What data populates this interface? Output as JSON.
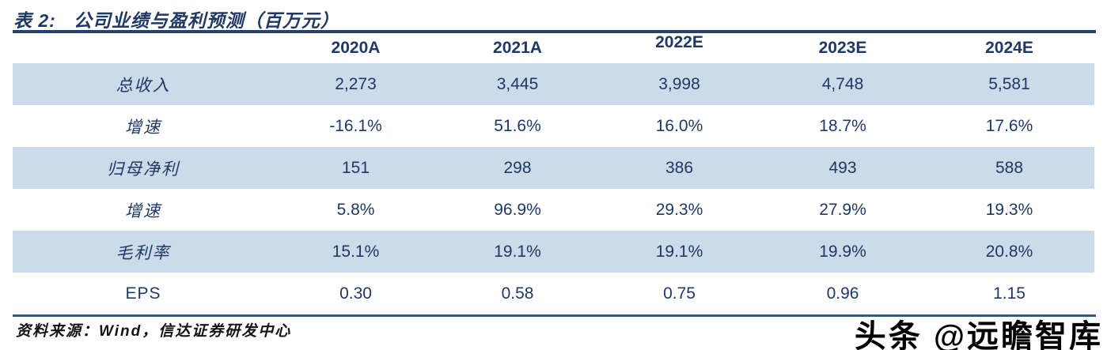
{
  "title": {
    "prefix": "表 2:",
    "text": "公司业绩与盈利预测（百万元）"
  },
  "table": {
    "columns": [
      "2020A",
      "2021A",
      "2022E",
      "2023E",
      "2024E"
    ],
    "rows": [
      {
        "label": "总收入",
        "values": [
          "2,273",
          "3,445",
          "3,998",
          "4,748",
          "5,581"
        ]
      },
      {
        "label": "增速",
        "values": [
          "-16.1%",
          "51.6%",
          "16.0%",
          "18.7%",
          "17.6%"
        ]
      },
      {
        "label": "归母净利",
        "values": [
          "151",
          "298",
          "386",
          "493",
          "588"
        ]
      },
      {
        "label": "增速",
        "values": [
          "5.8%",
          "96.9%",
          "29.3%",
          "27.9%",
          "19.3%"
        ]
      },
      {
        "label": "毛利率",
        "values": [
          "15.1%",
          "19.1%",
          "19.1%",
          "19.9%",
          "20.8%"
        ]
      },
      {
        "label": "EPS",
        "values": [
          "0.30",
          "0.58",
          "0.75",
          "0.96",
          "1.15"
        ]
      }
    ]
  },
  "footer": {
    "source": "资料来源：Wind，信达证券研发中心"
  },
  "watermark": "头条 @远瞻智库",
  "colors": {
    "navy": "#1f3864",
    "row_shade": "#ccdbea",
    "top_rule": "#24426e",
    "bottom_rule": "#37597c"
  },
  "chart_data": {
    "type": "table",
    "title": "表 2: 公司业绩与盈利预测（百万元）",
    "categories": [
      "2020A",
      "2021A",
      "2022E",
      "2023E",
      "2024E"
    ],
    "series": [
      {
        "name": "总收入",
        "values": [
          2273,
          3445,
          3998,
          4748,
          5581
        ]
      },
      {
        "name": "增速",
        "values": [
          "-16.1%",
          "51.6%",
          "16.0%",
          "18.7%",
          "17.6%"
        ]
      },
      {
        "name": "归母净利",
        "values": [
          151,
          298,
          386,
          493,
          588
        ]
      },
      {
        "name": "增速",
        "values": [
          "5.8%",
          "96.9%",
          "29.3%",
          "27.9%",
          "19.3%"
        ]
      },
      {
        "name": "毛利率",
        "values": [
          "15.1%",
          "19.1%",
          "19.1%",
          "19.9%",
          "20.8%"
        ]
      },
      {
        "name": "EPS",
        "values": [
          0.3,
          0.58,
          0.75,
          0.96,
          1.15
        ]
      }
    ]
  }
}
